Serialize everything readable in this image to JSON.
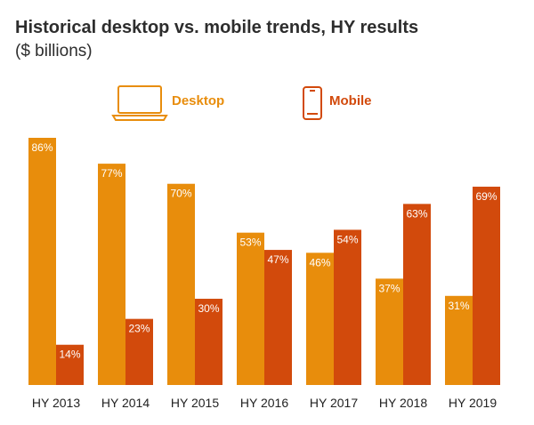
{
  "chart_data": {
    "type": "bar",
    "title": "Historical desktop vs. mobile trends, HY results",
    "subtitle": "($ billions)",
    "categories": [
      "HY 2013",
      "HY 2014",
      "HY 2015",
      "HY 2016",
      "HY 2017",
      "HY 2018",
      "HY 2019"
    ],
    "series": [
      {
        "name": "Desktop",
        "color": "#E88D0C",
        "icon": "laptop-icon",
        "values": [
          86,
          77,
          70,
          53,
          46,
          37,
          31
        ],
        "labels": [
          "86%",
          "77%",
          "70%",
          "53%",
          "46%",
          "37%",
          "31%"
        ]
      },
      {
        "name": "Mobile",
        "color": "#D24A0C",
        "icon": "mobile-phone-icon",
        "values": [
          14,
          23,
          30,
          47,
          54,
          63,
          69
        ],
        "labels": [
          "14%",
          "23%",
          "30%",
          "47%",
          "54%",
          "63%",
          "69%"
        ]
      }
    ],
    "ylim": [
      0,
      100
    ],
    "xlabel": "",
    "ylabel": "",
    "grid": false,
    "legend_position": "top-center"
  }
}
